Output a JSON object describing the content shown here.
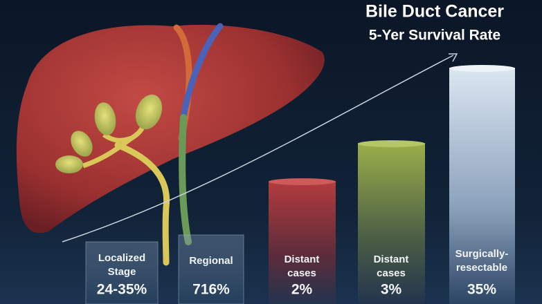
{
  "header": {
    "title": "Bile Duct Cancer",
    "subtitle": "5-Yer Survival Rate"
  },
  "columns": [
    {
      "label": [
        "Localized",
        "Stage"
      ],
      "value": "24-35%"
    },
    {
      "label": [
        "Regional"
      ],
      "value": "716%"
    },
    {
      "label": [
        "Distant",
        "cases"
      ],
      "value": "2%"
    },
    {
      "label": [
        "Distant",
        "cases"
      ],
      "value": "3%"
    },
    {
      "label": [
        "Surgically-",
        "resectable"
      ],
      "value": "35%"
    }
  ]
}
